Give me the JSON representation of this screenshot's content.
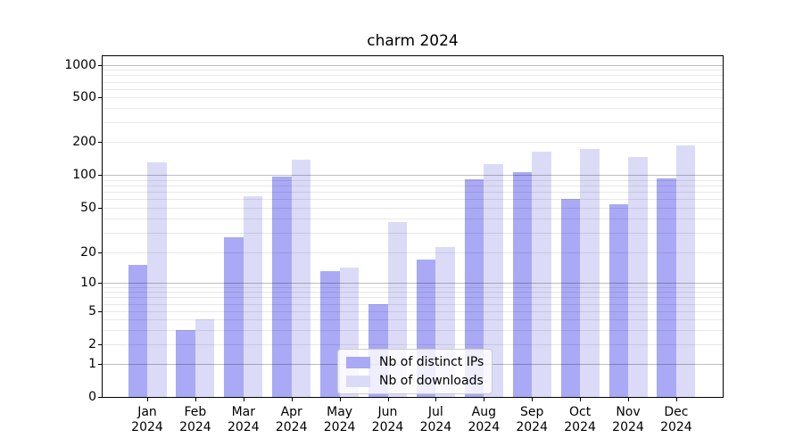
{
  "chart_data": {
    "type": "bar",
    "title": "charm 2024",
    "categories": [
      "Jan 2024",
      "Feb 2024",
      "Mar 2024",
      "Apr 2024",
      "May 2024",
      "Jun 2024",
      "Jul 2024",
      "Aug 2024",
      "Sep 2024",
      "Oct 2024",
      "Nov 2024",
      "Dec 2024"
    ],
    "series": [
      {
        "name": "Nb of distinct IPs",
        "color": "#a9a9f5",
        "values": [
          15,
          3,
          27,
          96,
          13,
          6,
          17,
          91,
          105,
          60,
          54,
          93
        ]
      },
      {
        "name": "Nb of downloads",
        "color": "#dbdbf8",
        "values": [
          130,
          4,
          63,
          137,
          14,
          37,
          22,
          125,
          163,
          172,
          147,
          188
        ]
      }
    ],
    "yscale": "symlog",
    "yticks": [
      0,
      1,
      2,
      5,
      10,
      20,
      50,
      100,
      200,
      500,
      1000
    ],
    "ylim": [
      0,
      1100
    ],
    "xlabel": "",
    "ylabel": "",
    "grid": true,
    "legend_position": "lower-center",
    "background": "#ffffff",
    "axis_color": "#000000"
  }
}
